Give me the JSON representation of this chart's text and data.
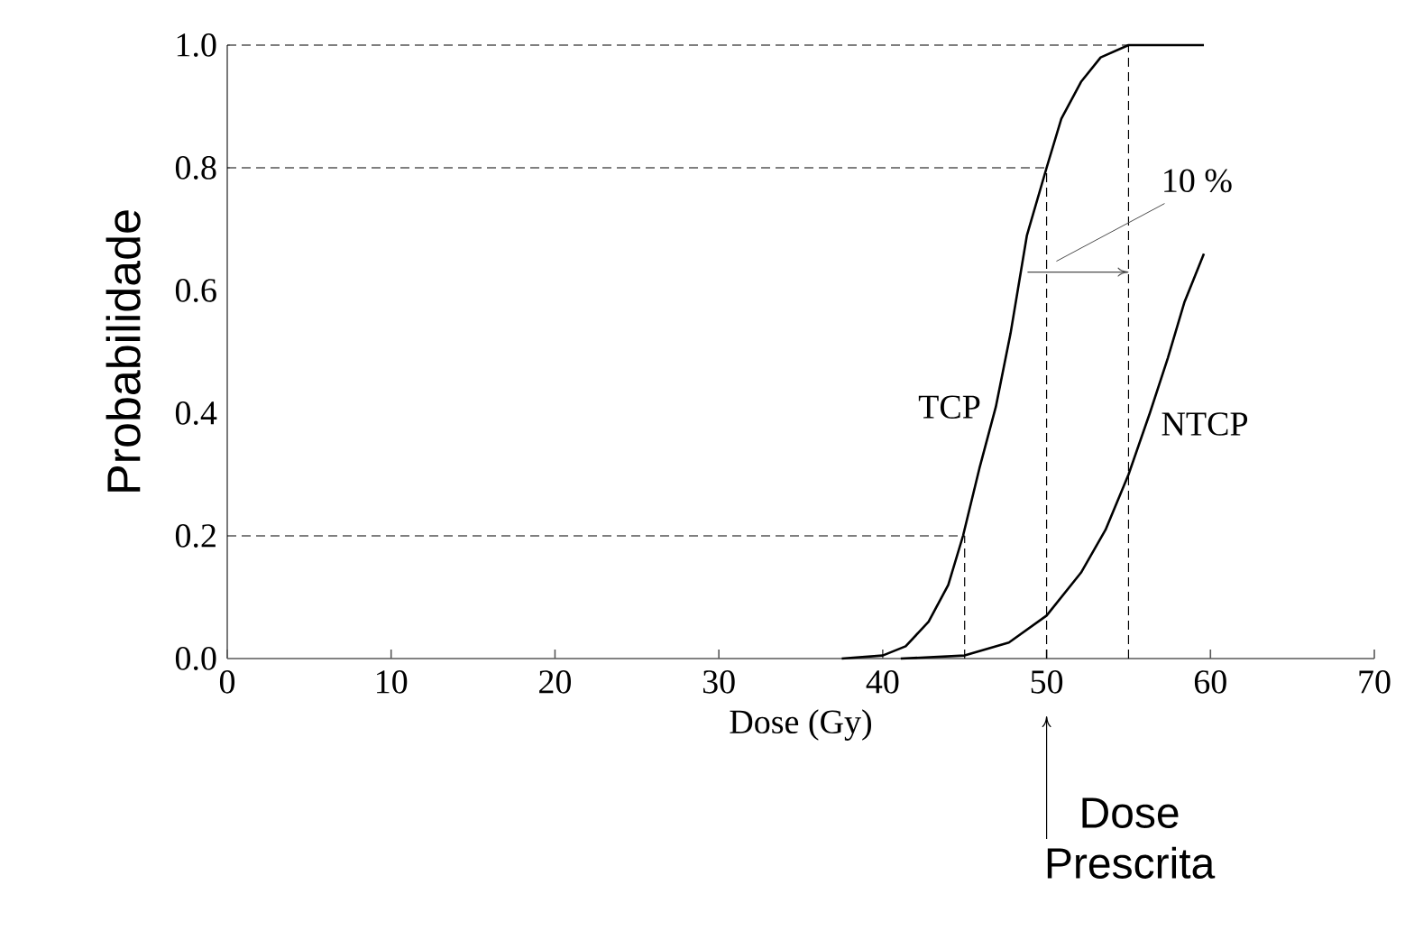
{
  "chart_data": {
    "type": "line",
    "xlabel": "Dose (Gy)",
    "ylabel": "Probabilidade",
    "xlim": [
      0,
      70
    ],
    "ylim": [
      0,
      1.0
    ],
    "xticks": [
      0,
      10,
      20,
      30,
      40,
      50,
      60,
      70
    ],
    "yticks": [
      {
        "value": 0,
        "label": "0.0"
      },
      {
        "value": 0.2,
        "label": "0.2"
      },
      {
        "value": 0.4,
        "label": "0.4"
      },
      {
        "value": 0.6,
        "label": "0.6"
      },
      {
        "value": 0.8,
        "label": "0.8"
      },
      {
        "value": 1.0,
        "label": "1.0"
      }
    ],
    "grid": false,
    "legend": false,
    "series": [
      {
        "name": "TCP",
        "color": "#000000",
        "line_style": "solid",
        "x": [
          37.5,
          40,
          41.4,
          42.8,
          44,
          44.9,
          45.9,
          46.9,
          47.8,
          48.8,
          50,
          50.9,
          52.1,
          53.3,
          55,
          59.6
        ],
        "values": [
          0,
          0.005,
          0.02,
          0.06,
          0.12,
          0.2,
          0.31,
          0.41,
          0.53,
          0.69,
          0.8,
          0.88,
          0.94,
          0.98,
          1.0,
          1.0
        ]
      },
      {
        "name": "NTCP",
        "color": "#000000",
        "line_style": "solid",
        "x": [
          41.1,
          45,
          47.7,
          50,
          52.1,
          53.6,
          55,
          56.3,
          57.4,
          58.4,
          59.6
        ],
        "values": [
          0,
          0.005,
          0.026,
          0.07,
          0.14,
          0.21,
          0.3,
          0.4,
          0.49,
          0.58,
          0.66
        ]
      },
      {
        "color": "#000000",
        "line_style": "dashed",
        "x": [
          0,
          55
        ],
        "values": [
          1.0,
          1.0
        ]
      },
      {
        "color": "#000000",
        "line_style": "dashed",
        "x": [
          0,
          50
        ],
        "values": [
          0.8,
          0.8
        ]
      },
      {
        "color": "#000000",
        "line_style": "dashed",
        "x": [
          0,
          45
        ],
        "values": [
          0.2,
          0.2
        ]
      },
      {
        "color": "#000000",
        "line_style": "dashed",
        "x": [
          45,
          45
        ],
        "values": [
          0,
          0.2
        ]
      },
      {
        "color": "#000000",
        "line_style": "dashed",
        "x": [
          50,
          50
        ],
        "values": [
          0,
          0.8
        ]
      },
      {
        "color": "#000000",
        "line_style": "dashed",
        "x": [
          55,
          55
        ],
        "values": [
          0,
          1.0
        ]
      }
    ],
    "annotations": [
      {
        "text": "10 %",
        "x": 55,
        "y": 0.63
      },
      "Dose Prescrita"
    ]
  }
}
